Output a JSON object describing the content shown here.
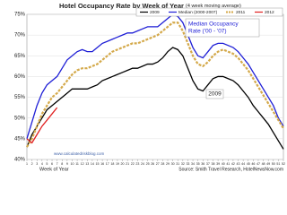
{
  "chart_data": {
    "type": "line",
    "title": "Hotel Occupancy Rate by Week of Year",
    "subtitle": "(4 week moving average)",
    "x_label": "Week of Year",
    "credit": "www.calculatedriskblog.com",
    "source": "Source: Smith Travel Research, HotelNewsNow.com",
    "median_note": [
      "Median Occupancy",
      "Rate ('00 - '07)"
    ],
    "note_2009": "2009",
    "x": [
      1,
      2,
      3,
      4,
      5,
      6,
      7,
      8,
      9,
      10,
      11,
      12,
      13,
      14,
      15,
      16,
      17,
      18,
      19,
      20,
      21,
      22,
      23,
      24,
      25,
      26,
      27,
      28,
      29,
      30,
      31,
      32,
      33,
      34,
      35,
      36,
      37,
      38,
      39,
      40,
      41,
      42,
      43,
      44,
      45,
      46,
      47,
      48,
      49,
      50,
      51,
      52
    ],
    "xlim": [
      1,
      52
    ],
    "xticks": [
      1,
      2,
      3,
      4,
      5,
      6,
      7,
      8,
      9,
      10,
      11,
      12,
      13,
      14,
      15,
      16,
      17,
      18,
      19,
      20,
      21,
      22,
      23,
      24,
      25,
      26,
      27,
      28,
      29,
      30,
      31,
      32,
      33,
      34,
      35,
      36,
      37,
      38,
      39,
      40,
      41,
      42,
      43,
      44,
      45,
      46,
      47,
      48,
      49,
      50,
      51,
      52
    ],
    "ylim": [
      40,
      75
    ],
    "yticks": [
      {
        "value": 40,
        "label": "40%"
      },
      {
        "value": 45,
        "label": "45%"
      },
      {
        "value": 50,
        "label": "50%"
      },
      {
        "value": 55,
        "label": "55%"
      },
      {
        "value": 60,
        "label": "60%"
      },
      {
        "value": 65,
        "label": "65%"
      },
      {
        "value": 70,
        "label": "70%"
      },
      {
        "value": 75,
        "label": "75%"
      }
    ],
    "grid": true,
    "series": [
      {
        "name": "2009",
        "color": "#000000",
        "style": "solid",
        "values": [
          43,
          46,
          48,
          50,
          52,
          53,
          54,
          55,
          56,
          57,
          57,
          57,
          57,
          57.5,
          58,
          59,
          59.5,
          60,
          60.5,
          61,
          61.5,
          62,
          62,
          62.5,
          63,
          63,
          63.5,
          64.5,
          66,
          67,
          66.5,
          65,
          62,
          59,
          57,
          56.5,
          58,
          59.5,
          60,
          60,
          59.5,
          59,
          58,
          56.5,
          55,
          53,
          51.5,
          50,
          48.5,
          46.5,
          44.5,
          42.5
        ]
      },
      {
        "name": "Median (2000-2007)",
        "color": "#1f1fd6",
        "style": "solid",
        "values": [
          45,
          49,
          53,
          56,
          58,
          59,
          60,
          62,
          64,
          65,
          66,
          66.5,
          66,
          66,
          67,
          68,
          68.5,
          69,
          69.5,
          70,
          70.5,
          70.5,
          71,
          71.5,
          72,
          72,
          72,
          73,
          74,
          75,
          74.5,
          73,
          70,
          67,
          65,
          64.5,
          66,
          67.5,
          68,
          68,
          67.5,
          67,
          66,
          64.5,
          63,
          61,
          59,
          57,
          55,
          53,
          50,
          48
        ]
      },
      {
        "name": "2011",
        "color": "#d4a94a",
        "style": "dashed",
        "values": [
          43,
          45,
          48,
          51,
          53,
          55,
          56,
          57.5,
          59,
          60.5,
          61.5,
          62,
          62,
          62.5,
          63,
          64,
          65,
          66,
          66.5,
          67,
          67.5,
          68,
          68,
          68.5,
          69,
          69.5,
          70,
          71,
          72,
          73,
          73,
          71,
          68,
          65,
          63,
          62.5,
          63.5,
          65,
          66,
          66.5,
          66,
          65.5,
          64.5,
          63,
          61.5,
          59.5,
          57.5,
          55.5,
          53.5,
          51.5,
          49.5,
          47.5
        ]
      },
      {
        "name": "2012",
        "color": "#e02020",
        "style": "solid",
        "values": [
          45,
          44,
          46,
          48,
          49.5,
          51,
          52.5,
          null,
          null,
          null,
          null,
          null,
          null,
          null,
          null,
          null,
          null,
          null,
          null,
          null,
          null,
          null,
          null,
          null,
          null,
          null,
          null,
          null,
          null,
          null,
          null,
          null,
          null,
          null,
          null,
          null,
          null,
          null,
          null,
          null,
          null,
          null,
          null,
          null,
          null,
          null,
          null,
          null,
          null,
          null,
          null,
          null
        ]
      }
    ]
  }
}
